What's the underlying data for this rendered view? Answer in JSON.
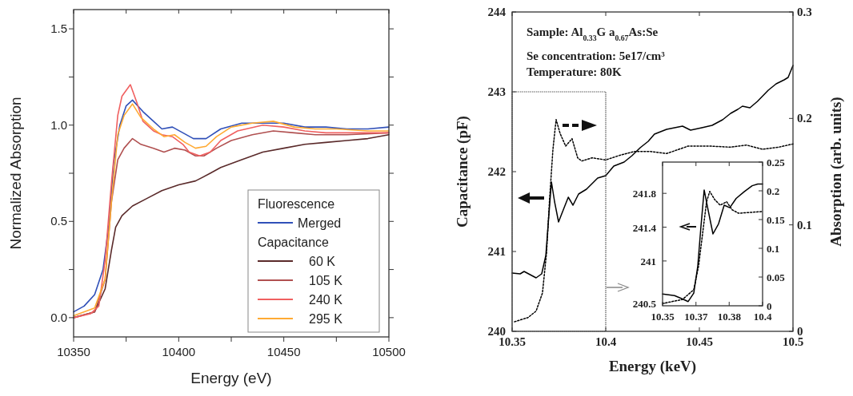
{
  "chart_data": [
    {
      "type": "line",
      "xlabel": "Energy (eV)",
      "ylabel": "Normalized Absorption",
      "xlim": [
        10350,
        10500
      ],
      "xticks": [
        10350,
        {
          "value": 10375,
          "label": null
        },
        10400,
        {
          "value": 10425,
          "label": null
        },
        10450,
        {
          "value": 10475,
          "label": null
        },
        10500
      ],
      "ylim": [
        -0.1,
        1.6
      ],
      "yticks": [
        {
          "value": 0,
          "label": "0.0"
        },
        {
          "value": 0.25,
          "label": null
        },
        0.5,
        {
          "value": 0.75,
          "label": null
        },
        {
          "value": 1,
          "label": "1.0"
        },
        {
          "value": 1.25,
          "label": null
        },
        1.5
      ],
      "grid": false,
      "legend": "bottom right",
      "legend_title": "Fluorescence",
      "annotations": [
        "Capacitance"
      ],
      "marker": "none",
      "series": [
        {
          "name": "Merged",
          "color": "#3050b8",
          "x": [
            10350,
            10355,
            10360,
            10364,
            10367,
            10369,
            10372,
            10375,
            10378,
            10383,
            10388,
            10392,
            10397,
            10402,
            10407,
            10413,
            10420,
            10430,
            10440,
            10450,
            10460,
            10470,
            10480,
            10490,
            10500
          ],
          "values": [
            0.03,
            0.06,
            0.12,
            0.25,
            0.5,
            0.8,
            1.0,
            1.1,
            1.13,
            1.07,
            1.02,
            0.98,
            0.99,
            0.96,
            0.93,
            0.93,
            0.98,
            1.01,
            1.01,
            1.01,
            0.99,
            0.99,
            0.98,
            0.98,
            0.99
          ]
        },
        {
          "name": "60 K",
          "color": "#5a2a2a",
          "x": [
            10350,
            10360,
            10365,
            10368,
            10370,
            10373,
            10378,
            10385,
            10392,
            10400,
            10408,
            10415,
            10420,
            10430,
            10440,
            10450,
            10460,
            10470,
            10480,
            10490,
            10500
          ],
          "values": [
            0.0,
            0.03,
            0.15,
            0.35,
            0.47,
            0.53,
            0.58,
            0.62,
            0.66,
            0.69,
            0.71,
            0.75,
            0.78,
            0.82,
            0.86,
            0.88,
            0.9,
            0.91,
            0.92,
            0.93,
            0.95
          ]
        },
        {
          "name": "105 K",
          "color": "#b05050",
          "x": [
            10350,
            10360,
            10365,
            10368,
            10371,
            10374,
            10378,
            10382,
            10388,
            10393,
            10398,
            10403,
            10408,
            10412,
            10418,
            10425,
            10435,
            10445,
            10455,
            10465,
            10480,
            10500
          ],
          "values": [
            0.0,
            0.03,
            0.2,
            0.6,
            0.82,
            0.88,
            0.93,
            0.9,
            0.88,
            0.86,
            0.88,
            0.87,
            0.84,
            0.84,
            0.88,
            0.92,
            0.95,
            0.97,
            0.96,
            0.95,
            0.95,
            0.96
          ]
        },
        {
          "name": "240 K",
          "color": "#f06060",
          "x": [
            10350,
            10358,
            10362,
            10365,
            10368,
            10371,
            10373,
            10377,
            10380,
            10383,
            10388,
            10392,
            10397,
            10402,
            10405,
            10410,
            10415,
            10420,
            10428,
            10440,
            10450,
            10460,
            10470,
            10480,
            10490,
            10500
          ],
          "values": [
            0.0,
            0.02,
            0.06,
            0.3,
            0.7,
            1.05,
            1.15,
            1.21,
            1.12,
            1.02,
            0.97,
            0.95,
            0.94,
            0.9,
            0.86,
            0.84,
            0.86,
            0.92,
            0.97,
            1.0,
            0.99,
            0.97,
            0.96,
            0.96,
            0.96,
            0.96
          ]
        },
        {
          "name": "295 K",
          "color": "#ffaa33",
          "x": [
            10350,
            10360,
            10365,
            10368,
            10371,
            10374,
            10378,
            10382,
            10388,
            10393,
            10398,
            10403,
            10408,
            10413,
            10418,
            10425,
            10435,
            10445,
            10455,
            10465,
            10475,
            10490,
            10500
          ],
          "values": [
            0.01,
            0.05,
            0.2,
            0.6,
            0.95,
            1.05,
            1.11,
            1.04,
            0.98,
            0.94,
            0.95,
            0.91,
            0.88,
            0.89,
            0.94,
            0.99,
            1.01,
            1.02,
            0.99,
            0.98,
            0.98,
            0.97,
            0.97
          ]
        }
      ]
    },
    {
      "type": "line",
      "xlabel": "Energy (keV)",
      "ylabel": "Capacitance (pF)",
      "y2label": "Absorption (arb. units)",
      "xlim": [
        10.35,
        10.5
      ],
      "xticks": [
        10.35,
        10.4,
        10.45,
        10.5
      ],
      "ylim": [
        240,
        244
      ],
      "yticks": [
        240,
        241,
        242,
        243,
        244
      ],
      "y2lim": [
        0,
        0.3
      ],
      "y2ticks": [
        0,
        0.1,
        0.2,
        0.3
      ],
      "grid": false,
      "marker": "none",
      "annotations": [
        "Sample: Al$_{0.33}$G a$_{0.67}$As:Se",
        "Se concentration: 5e17/cm³",
        "Temperature: 80K"
      ],
      "series": [
        {
          "color": "#000000",
          "line_style": "solid",
          "x": [
            10.35,
            10.3543,
            10.3564,
            10.3628,
            10.3658,
            10.368,
            10.3697,
            10.371,
            10.3727,
            10.3748,
            10.3778,
            10.38,
            10.3825,
            10.3855,
            10.3897,
            10.3957,
            10.4,
            10.4043,
            10.4098,
            10.414,
            10.4184,
            10.4227,
            10.426,
            10.4325,
            10.441,
            10.4453,
            10.4513,
            10.4568,
            10.4624,
            10.4667,
            10.4705,
            10.473,
            10.477,
            10.481,
            10.4868,
            10.491,
            10.4953,
            10.4974,
            10.5
          ],
          "values": [
            240.73,
            240.72,
            240.75,
            240.67,
            240.72,
            240.95,
            241.48,
            241.87,
            241.62,
            241.37,
            241.55,
            241.68,
            241.58,
            241.72,
            241.78,
            241.92,
            241.95,
            242.07,
            242.12,
            242.2,
            242.3,
            242.38,
            242.47,
            242.53,
            242.57,
            242.52,
            242.55,
            242.58,
            242.65,
            242.73,
            242.78,
            242.82,
            242.8,
            242.88,
            243.02,
            243.1,
            243.15,
            243.18,
            243.33
          ]
        },
        {
          "color": "#000000",
          "line_style": "dotted",
          "axis": "y2",
          "x": [
            10.3513,
            10.3585,
            10.3628,
            10.3662,
            10.3684,
            10.37,
            10.3718,
            10.3735,
            10.3756,
            10.3786,
            10.382,
            10.385,
            10.3872,
            10.3927,
            10.4,
            10.4068,
            10.4154,
            10.4239,
            10.4325,
            10.444,
            10.4556,
            10.4667,
            10.4752,
            10.4838,
            10.4923,
            10.5
          ],
          "values": [
            0.009,
            0.013,
            0.019,
            0.036,
            0.074,
            0.124,
            0.171,
            0.199,
            0.186,
            0.174,
            0.181,
            0.163,
            0.16,
            0.163,
            0.161,
            0.165,
            0.169,
            0.169,
            0.167,
            0.174,
            0.174,
            0.173,
            0.175,
            0.171,
            0.173,
            0.176
          ]
        }
      ]
    },
    {
      "type": "line",
      "xlim": [
        10.35,
        10.4
      ],
      "xticks": [
        10.35,
        {
          "value": 10.3667,
          "label": "10.37"
        },
        {
          "value": 10.3833,
          "label": "10.38"
        },
        10.4
      ],
      "ylim": [
        240.47,
        242.17
      ],
      "yticks": [
        240.5,
        241,
        241.4,
        241.8
      ],
      "y2lim": [
        0,
        0.25
      ],
      "y2ticks": [
        0,
        0.05,
        0.1,
        0.15,
        0.2,
        0.25
      ],
      "grid": false,
      "marker": "none",
      "series": [
        {
          "color": "#000000",
          "line_style": "solid",
          "x": [
            10.35,
            10.356,
            10.36,
            10.3628,
            10.3656,
            10.3676,
            10.3692,
            10.3708,
            10.3728,
            10.3752,
            10.378,
            10.3808,
            10.3836,
            10.3868,
            10.3908,
            10.3948,
            10.3976,
            10.4
          ],
          "values": [
            240.61,
            240.59,
            240.55,
            240.52,
            240.62,
            240.94,
            241.41,
            241.84,
            241.6,
            241.32,
            241.44,
            241.66,
            241.63,
            241.74,
            241.82,
            241.89,
            241.91,
            241.91
          ]
        },
        {
          "color": "#000000",
          "line_style": "dotted",
          "axis": "y2",
          "x": [
            10.35,
            10.36,
            10.3656,
            10.368,
            10.37,
            10.372,
            10.3736,
            10.376,
            10.3788,
            10.382,
            10.3848,
            10.388,
            10.4
          ],
          "values": [
            0.004,
            0.011,
            0.028,
            0.069,
            0.125,
            0.181,
            0.199,
            0.185,
            0.175,
            0.181,
            0.167,
            0.161,
            0.164
          ]
        }
      ]
    }
  ]
}
